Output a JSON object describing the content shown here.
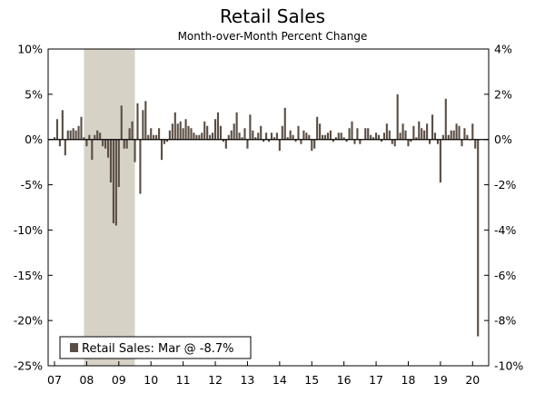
{
  "title": "Retail Sales",
  "subtitle": "Month-over-Month Percent Change",
  "chart_data": {
    "type": "bar",
    "title": "Retail Sales",
    "subtitle": "Month-over-Month Percent Change",
    "xlabel": "",
    "ylabel": "",
    "ylim": [
      -25,
      10
    ],
    "y2lim": [
      -10,
      4
    ],
    "yticks": [
      "10%",
      "5%",
      "0%",
      "-5%",
      "-10%",
      "-15%",
      "-20%",
      "-25%"
    ],
    "y2ticks": [
      "4%",
      "2%",
      "0%",
      "-2%",
      "-4%",
      "-6%",
      "-8%",
      "-10%"
    ],
    "xticks": [
      "07",
      "08",
      "09",
      "10",
      "11",
      "12",
      "13",
      "14",
      "15",
      "16",
      "17",
      "18",
      "19",
      "20"
    ],
    "grid": false,
    "legend_position": "bottom-left",
    "recession_shading": {
      "start": "2007-12",
      "end": "2009-06"
    },
    "colors": {
      "bar": "#5a4e44",
      "shade": "#d6d2c6",
      "axis": "#000000"
    },
    "series": [
      {
        "name": "Retail Sales: Mar @ -8.7%",
        "start": "2007-01",
        "values": [
          0.1,
          0.9,
          -0.3,
          1.3,
          -0.7,
          0.4,
          0.4,
          0.5,
          0.4,
          0.6,
          1.0,
          0.1,
          -0.3,
          0.2,
          -0.9,
          0.2,
          0.4,
          0.3,
          -0.3,
          -0.4,
          -0.8,
          -1.9,
          -3.7,
          -3.8,
          -2.1,
          1.5,
          -0.4,
          -0.4,
          0.5,
          0.8,
          -1.0,
          1.6,
          -2.4,
          1.3,
          1.7,
          0.2,
          0.5,
          0.2,
          0.2,
          0.5,
          -0.9,
          -0.2,
          -0.1,
          0.4,
          0.7,
          1.2,
          0.7,
          0.8,
          0.5,
          0.9,
          0.6,
          0.5,
          0.3,
          0.2,
          0.2,
          0.3,
          0.8,
          0.6,
          0.2,
          0.3,
          0.9,
          1.2,
          0.6,
          -0.1,
          -0.4,
          0.2,
          0.4,
          0.7,
          1.2,
          0.3,
          0.1,
          0.5,
          -0.4,
          1.1,
          0.4,
          0.1,
          0.3,
          0.6,
          -0.1,
          0.3,
          -0.1,
          0.3,
          0.1,
          0.3,
          -0.5,
          0.6,
          1.4,
          0.1,
          0.4,
          0.2,
          -0.1,
          0.6,
          -0.2,
          0.4,
          0.3,
          0.2,
          -0.5,
          -0.4,
          1.0,
          0.7,
          0.2,
          0.2,
          0.3,
          0.4,
          -0.1,
          0.1,
          0.3,
          0.3,
          0.1,
          -0.1,
          0.5,
          0.8,
          -0.2,
          0.5,
          -0.2,
          0.0,
          0.5,
          0.5,
          0.2,
          0.1,
          0.3,
          0.2,
          -0.1,
          0.3,
          0.7,
          0.4,
          -0.2,
          -0.3,
          2.0,
          0.3,
          0.7,
          0.4,
          -0.3,
          -0.1,
          0.6,
          0.1,
          0.8,
          0.5,
          0.4,
          0.7,
          -0.2,
          1.1,
          0.3,
          -0.2,
          -1.9,
          0.2,
          1.8,
          0.2,
          0.4,
          0.4,
          0.7,
          0.6,
          -0.3,
          0.5,
          0.2,
          0.0,
          0.7,
          -0.4,
          -8.7
        ]
      }
    ]
  }
}
